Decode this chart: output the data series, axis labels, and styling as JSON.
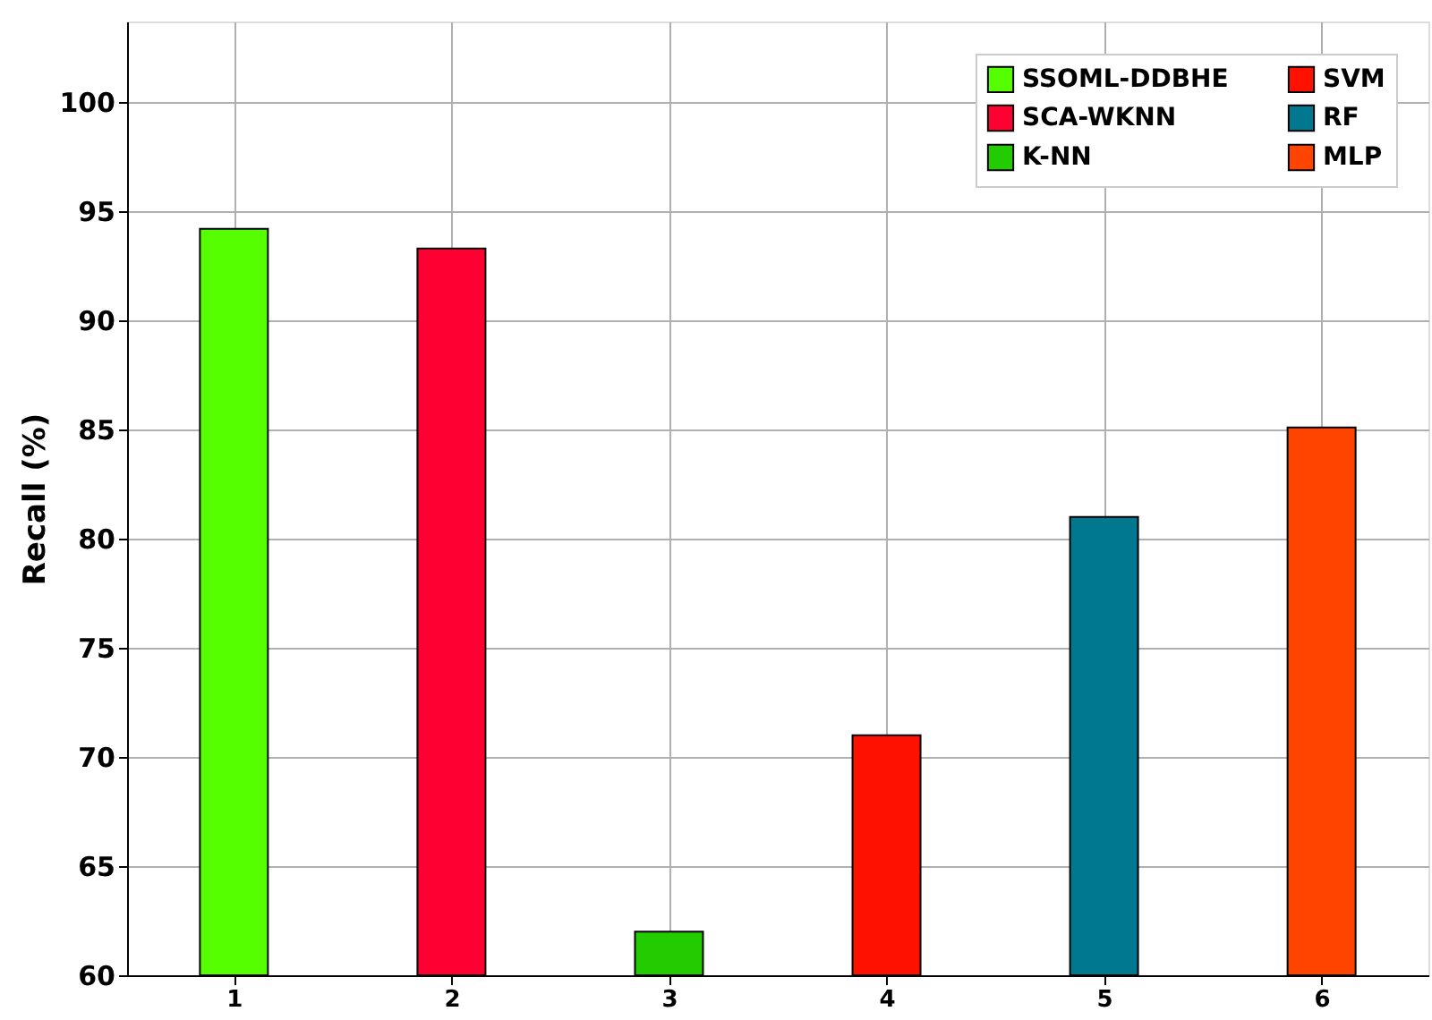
{
  "chart_data": {
    "type": "bar",
    "ylabel": "Recall (%)",
    "categories": [
      "1",
      "2",
      "3",
      "4",
      "5",
      "6"
    ],
    "series": [
      {
        "name": "SSOML-DDBHE",
        "color": "#55ff00",
        "values": [
          94.2,
          null,
          null,
          null,
          null,
          null
        ]
      },
      {
        "name": "SCA-WKNN",
        "color": "#ff0033",
        "values": [
          null,
          93.3,
          null,
          null,
          null,
          null
        ]
      },
      {
        "name": "K-NN",
        "color": "#22cc00",
        "values": [
          null,
          null,
          62.0,
          null,
          null,
          null
        ]
      },
      {
        "name": "SVM",
        "color": "#ff1100",
        "values": [
          null,
          null,
          null,
          71.0,
          null,
          null
        ]
      },
      {
        "name": "RF",
        "color": "#007890",
        "values": [
          null,
          null,
          null,
          null,
          81.0,
          null
        ]
      },
      {
        "name": "MLP",
        "color": "#ff4400",
        "values": [
          null,
          null,
          null,
          null,
          null,
          85.1
        ]
      }
    ],
    "ylim": [
      60,
      103.7
    ],
    "yticks": [
      60,
      65,
      70,
      75,
      80,
      85,
      90,
      95,
      100
    ],
    "grid": true,
    "legend": "top right"
  }
}
